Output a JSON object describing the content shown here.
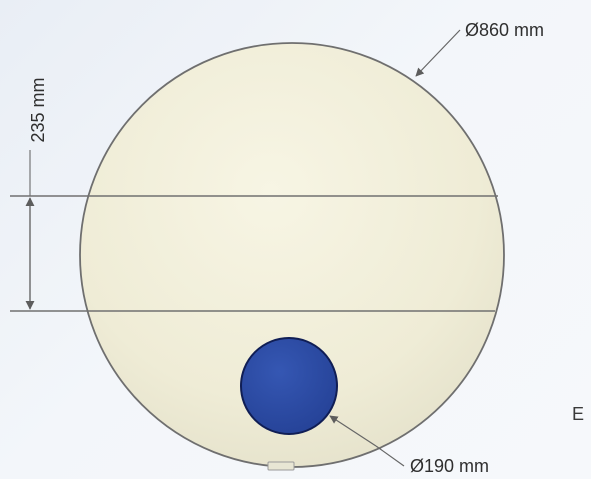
{
  "dimensions": {
    "outer_diameter": "Ø860 mm",
    "band_height": "235 mm",
    "port_diameter": "Ø190 mm"
  },
  "edge_letter": "E",
  "colors": {
    "background": "#eef2f7",
    "tank_fill": "#f1efdc",
    "tank_stroke": "#6d6d6d",
    "port_fill": "#2b4fa8",
    "port_stroke": "#0f1f55",
    "dimension_line": "#6b6b6b"
  }
}
